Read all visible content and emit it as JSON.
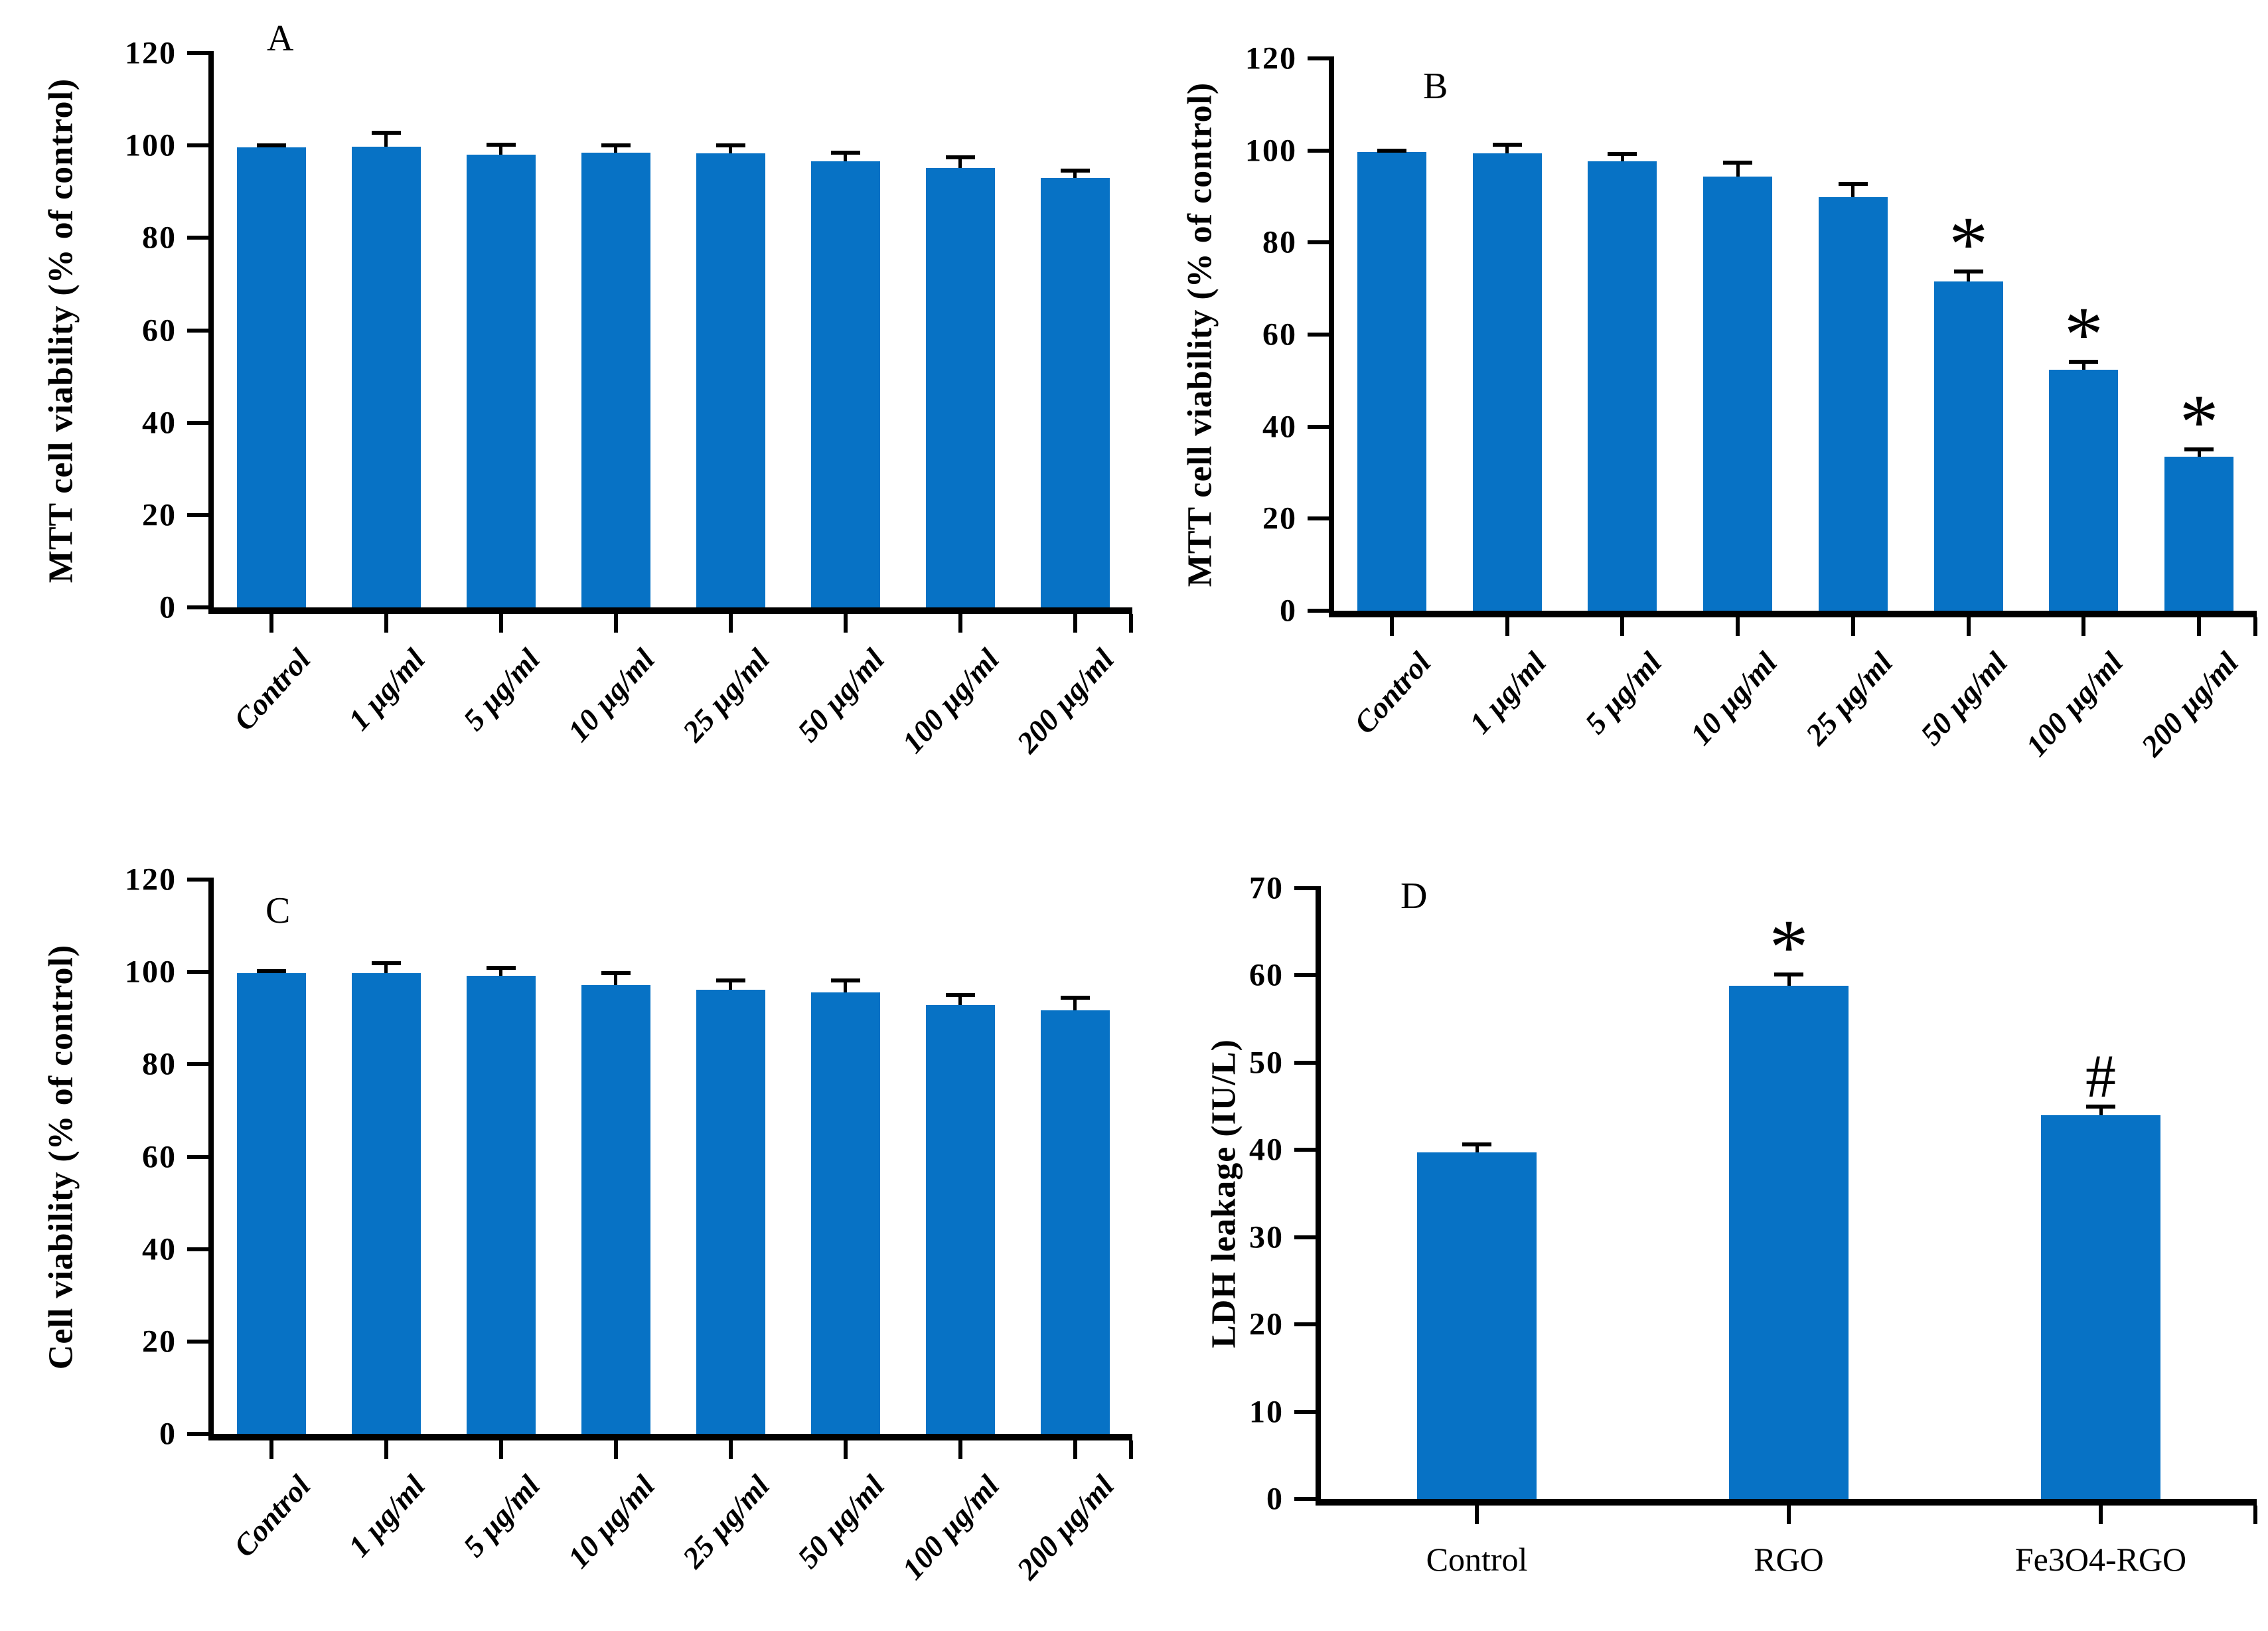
{
  "figure": {
    "background": "#ffffff",
    "bar_color": "#0772C5",
    "axis_color": "#000000"
  },
  "chart_data": [
    {
      "type": "bar",
      "panel": "A",
      "ylabel": "MTT cell viability (% of control)",
      "xlabel": "",
      "ylim": [
        0,
        120
      ],
      "yticks": [
        120,
        100,
        80,
        60,
        40,
        20,
        0
      ],
      "categories": [
        "Control",
        "1 µg/ml",
        "5 µg/ml",
        "10 µg/ml",
        "25 µg/ml",
        "50 µg/ml",
        "100 µg/ml",
        "200 µg/ml"
      ],
      "values": [
        99.6,
        99.7,
        98.0,
        98.4,
        98.3,
        96.6,
        95.2,
        93.0
      ],
      "errors": [
        0.4,
        3.0,
        2.2,
        1.6,
        1.7,
        1.8,
        2.3,
        1.5
      ],
      "annotations": [
        "",
        "",
        "",
        "",
        "",
        "",
        "",
        ""
      ],
      "grid": false,
      "legend": null
    },
    {
      "type": "bar",
      "panel": "B",
      "ylabel": "MTT cell viability (% of control)",
      "xlabel": "",
      "ylim": [
        0,
        120
      ],
      "yticks": [
        120,
        100,
        80,
        60,
        40,
        20,
        0
      ],
      "categories": [
        "Control",
        "1 µg/ml",
        "5 µg/ml",
        "10 µg/ml",
        "25 µg/ml",
        "50 µg/ml",
        "100 µg/ml",
        "200 µg/ml"
      ],
      "values": [
        99.7,
        99.4,
        97.6,
        94.3,
        89.8,
        71.5,
        52.4,
        33.4
      ],
      "errors": [
        0.3,
        1.8,
        1.6,
        3.0,
        2.9,
        2.2,
        1.7,
        1.6
      ],
      "annotations": [
        "",
        "",
        "",
        "",
        "",
        "*",
        "*",
        "*"
      ],
      "grid": false,
      "legend": null
    },
    {
      "type": "bar",
      "panel": "C",
      "ylabel": "Cell viability (% of control)",
      "xlabel": "",
      "ylim": [
        0,
        120
      ],
      "yticks": [
        120,
        100,
        80,
        60,
        40,
        20,
        0
      ],
      "categories": [
        "Control",
        "1 µg/ml",
        "5 µg/ml",
        "10 µg/ml",
        "25 µg/ml",
        "50 µg/ml",
        "100 µg/ml",
        "200 µg/ml"
      ],
      "values": [
        99.7,
        99.8,
        99.2,
        97.2,
        96.2,
        95.6,
        92.9,
        91.7
      ],
      "errors": [
        0.4,
        2.1,
        1.7,
        2.5,
        1.9,
        2.6,
        2.1,
        2.7
      ],
      "annotations": [
        "",
        "",
        "",
        "",
        "",
        "",
        "",
        ""
      ],
      "grid": false,
      "legend": null
    },
    {
      "type": "bar",
      "panel": "D",
      "ylabel": "LDH leakage (IU/L)",
      "xlabel": "",
      "ylim": [
        0,
        70
      ],
      "yticks": [
        70,
        60,
        50,
        40,
        30,
        20,
        10,
        0
      ],
      "categories": [
        "Control",
        "RGO",
        "Fe3O4-RGO"
      ],
      "values": [
        39.7,
        58.8,
        44.0
      ],
      "errors": [
        0.9,
        1.3,
        1.0
      ],
      "annotations": [
        "",
        "*",
        "#"
      ],
      "grid": false,
      "legend": null
    }
  ]
}
